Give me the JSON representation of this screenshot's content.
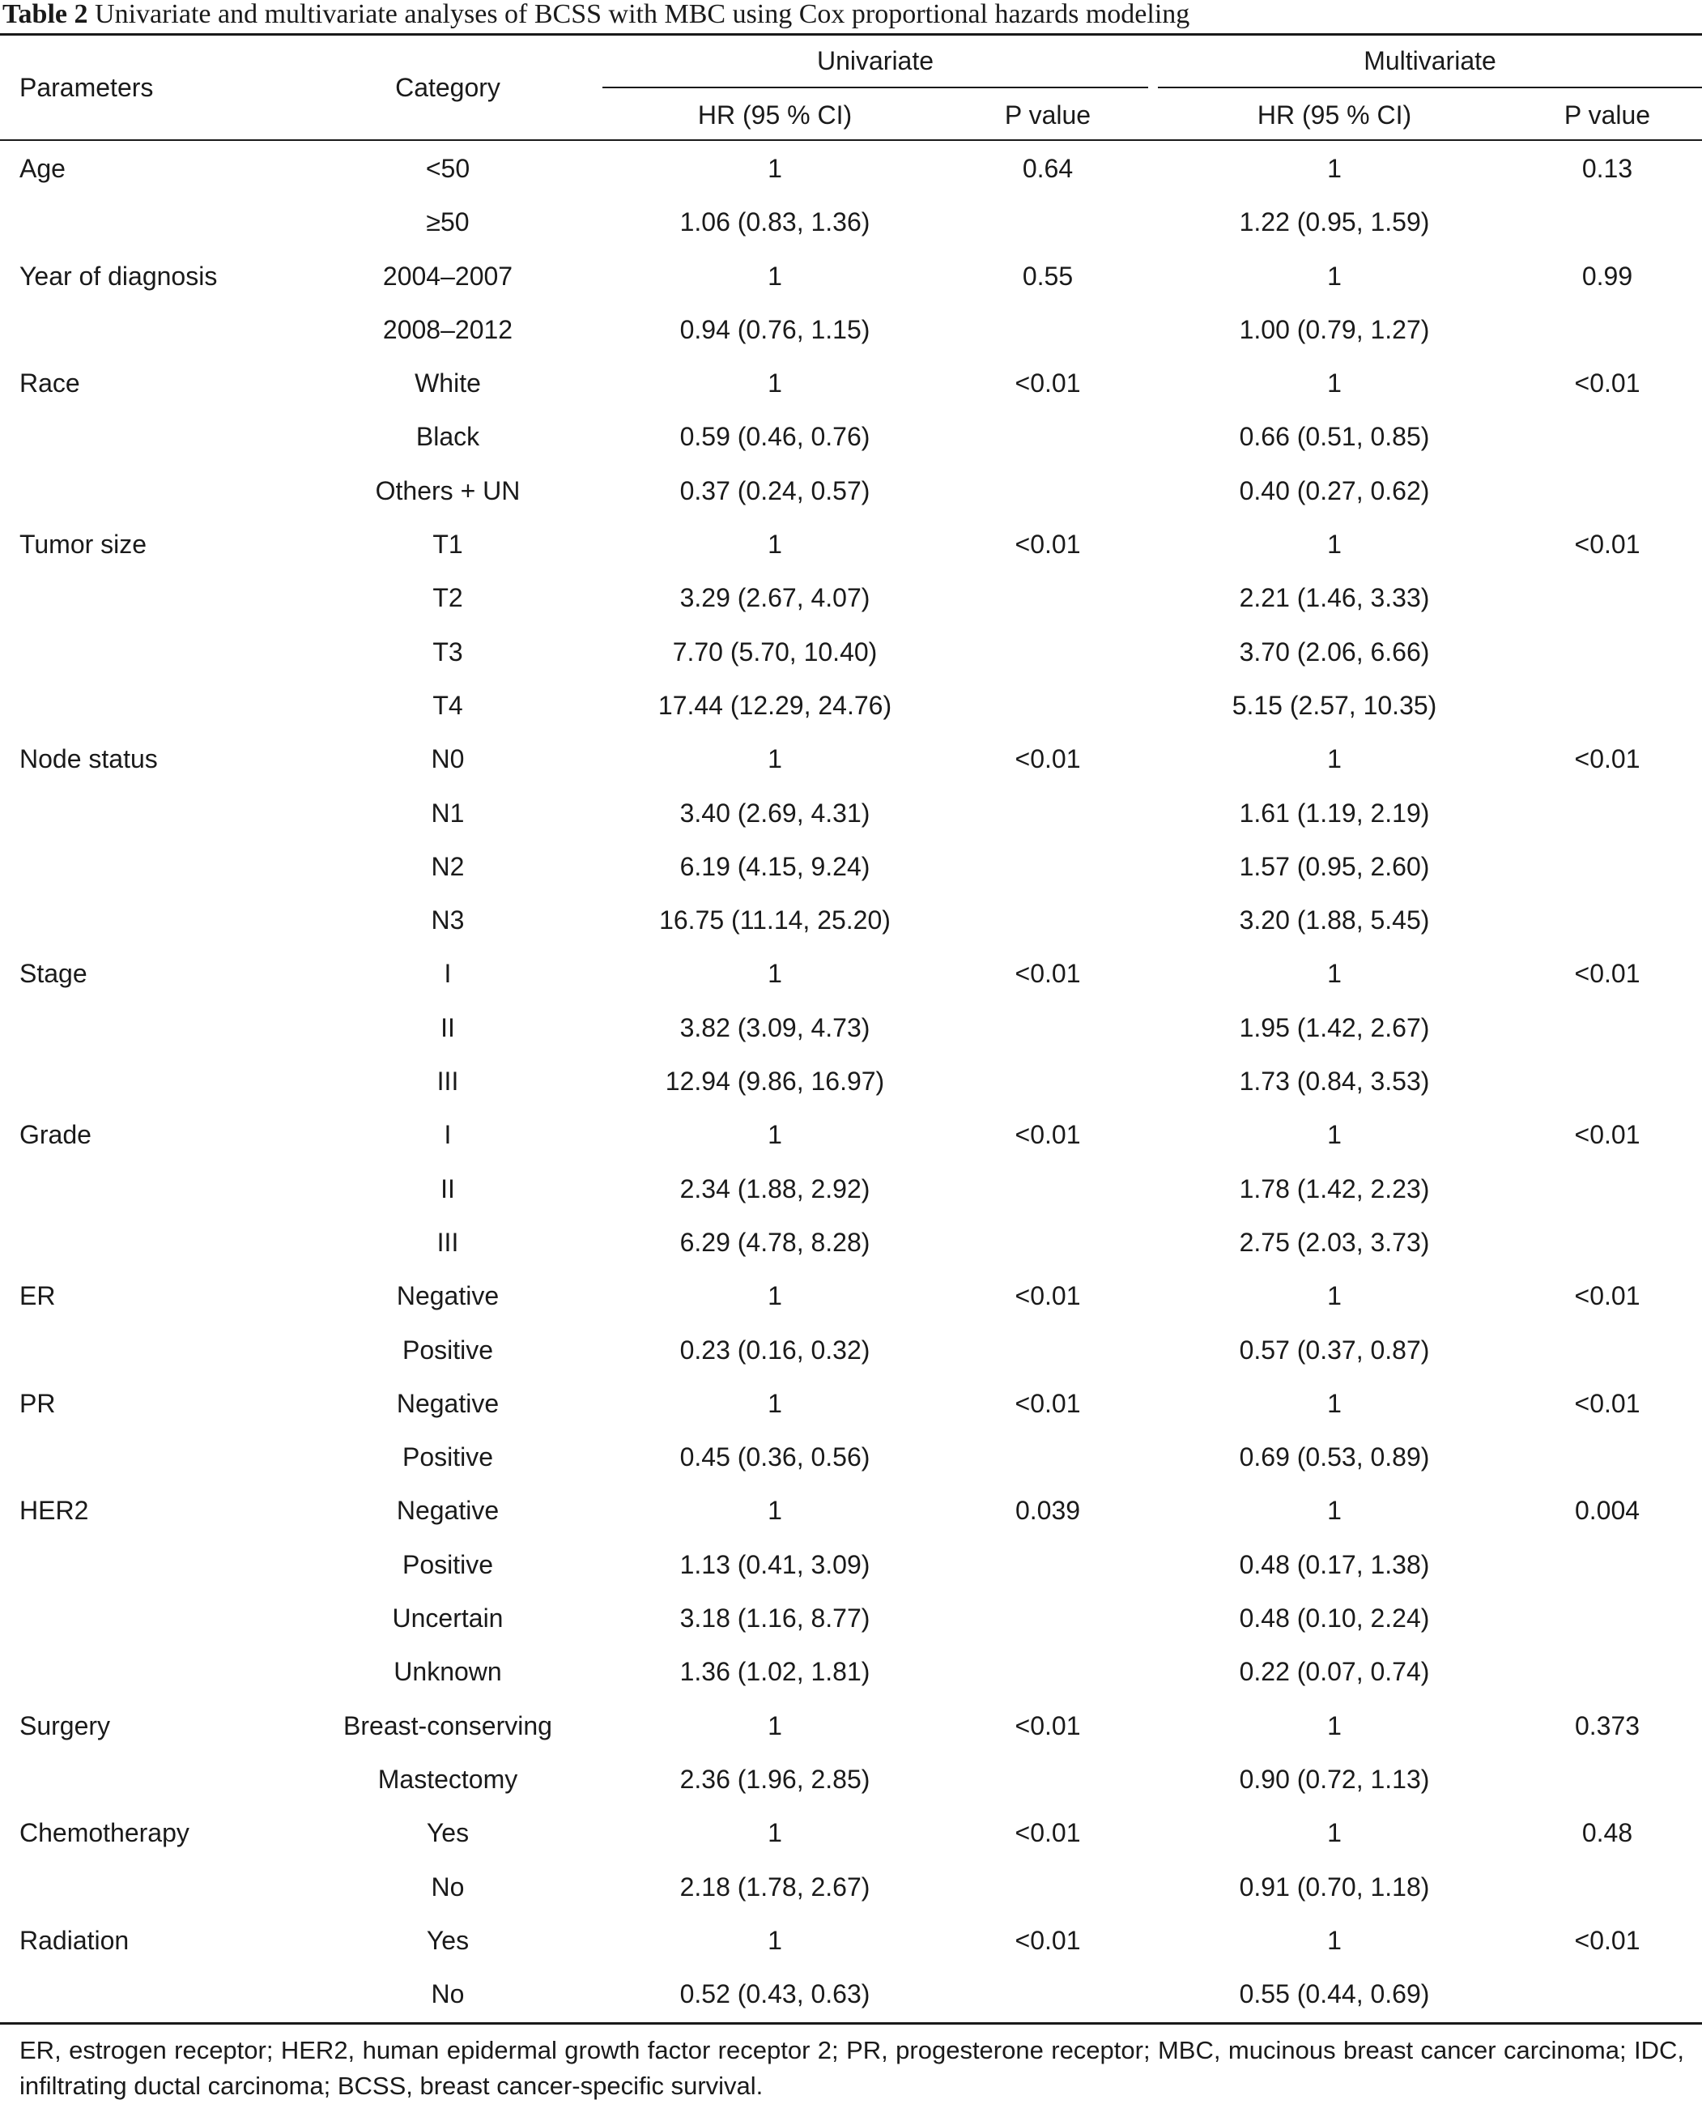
{
  "caption": {
    "label": "Table 2",
    "text": " Univariate and multivariate analyses of BCSS with MBC using Cox proportional hazards modeling"
  },
  "headers": {
    "parameters": "Parameters",
    "category": "Category",
    "univariate": "Univariate",
    "multivariate": "Multivariate",
    "uni_hr": "HR (95 % CI)",
    "uni_p": "P value",
    "multi_hr": "HR (95 % CI)",
    "multi_p": "P value"
  },
  "rows": [
    {
      "param": "Age",
      "category": "<50",
      "uni_hr": "1",
      "uni_p": "0.64",
      "multi_hr": "1",
      "multi_p": "0.13"
    },
    {
      "param": "",
      "category": "≥50",
      "uni_hr": "1.06 (0.83, 1.36)",
      "uni_p": "",
      "multi_hr": "1.22 (0.95, 1.59)",
      "multi_p": ""
    },
    {
      "param": "Year of diagnosis",
      "category": "2004–2007",
      "uni_hr": "1",
      "uni_p": "0.55",
      "multi_hr": "1",
      "multi_p": "0.99"
    },
    {
      "param": "",
      "category": "2008–2012",
      "uni_hr": "0.94 (0.76, 1.15)",
      "uni_p": "",
      "multi_hr": "1.00 (0.79, 1.27)",
      "multi_p": ""
    },
    {
      "param": "Race",
      "category": "White",
      "uni_hr": "1",
      "uni_p": "<0.01",
      "multi_hr": "1",
      "multi_p": "<0.01"
    },
    {
      "param": "",
      "category": "Black",
      "uni_hr": "0.59 (0.46, 0.76)",
      "uni_p": "",
      "multi_hr": "0.66 (0.51, 0.85)",
      "multi_p": ""
    },
    {
      "param": "",
      "category": "Others + UN",
      "uni_hr": "0.37 (0.24, 0.57)",
      "uni_p": "",
      "multi_hr": "0.40 (0.27, 0.62)",
      "multi_p": ""
    },
    {
      "param": "Tumor size",
      "category": "T1",
      "uni_hr": "1",
      "uni_p": "<0.01",
      "multi_hr": "1",
      "multi_p": "<0.01"
    },
    {
      "param": "",
      "category": "T2",
      "uni_hr": "3.29 (2.67, 4.07)",
      "uni_p": "",
      "multi_hr": "2.21 (1.46, 3.33)",
      "multi_p": ""
    },
    {
      "param": "",
      "category": "T3",
      "uni_hr": "7.70 (5.70, 10.40)",
      "uni_p": "",
      "multi_hr": "3.70 (2.06, 6.66)",
      "multi_p": ""
    },
    {
      "param": "",
      "category": "T4",
      "uni_hr": "17.44 (12.29, 24.76)",
      "uni_p": "",
      "multi_hr": "5.15 (2.57, 10.35)",
      "multi_p": ""
    },
    {
      "param": "Node status",
      "category": "N0",
      "uni_hr": "1",
      "uni_p": "<0.01",
      "multi_hr": "1",
      "multi_p": "<0.01"
    },
    {
      "param": "",
      "category": "N1",
      "uni_hr": "3.40 (2.69, 4.31)",
      "uni_p": "",
      "multi_hr": "1.61 (1.19, 2.19)",
      "multi_p": ""
    },
    {
      "param": "",
      "category": "N2",
      "uni_hr": "6.19 (4.15, 9.24)",
      "uni_p": "",
      "multi_hr": "1.57 (0.95, 2.60)",
      "multi_p": ""
    },
    {
      "param": "",
      "category": "N3",
      "uni_hr": "16.75 (11.14, 25.20)",
      "uni_p": "",
      "multi_hr": "3.20 (1.88, 5.45)",
      "multi_p": ""
    },
    {
      "param": "Stage",
      "category": "I",
      "uni_hr": "1",
      "uni_p": "<0.01",
      "multi_hr": "1",
      "multi_p": "<0.01"
    },
    {
      "param": "",
      "category": "II",
      "uni_hr": "3.82 (3.09, 4.73)",
      "uni_p": "",
      "multi_hr": "1.95 (1.42, 2.67)",
      "multi_p": ""
    },
    {
      "param": "",
      "category": "III",
      "uni_hr": "12.94 (9.86, 16.97)",
      "uni_p": "",
      "multi_hr": "1.73 (0.84, 3.53)",
      "multi_p": ""
    },
    {
      "param": "Grade",
      "category": "I",
      "uni_hr": "1",
      "uni_p": "<0.01",
      "multi_hr": "1",
      "multi_p": "<0.01"
    },
    {
      "param": "",
      "category": "II",
      "uni_hr": "2.34 (1.88, 2.92)",
      "uni_p": "",
      "multi_hr": "1.78 (1.42, 2.23)",
      "multi_p": ""
    },
    {
      "param": "",
      "category": "III",
      "uni_hr": "6.29 (4.78, 8.28)",
      "uni_p": "",
      "multi_hr": "2.75 (2.03, 3.73)",
      "multi_p": ""
    },
    {
      "param": "ER",
      "category": "Negative",
      "uni_hr": "1",
      "uni_p": "<0.01",
      "multi_hr": "1",
      "multi_p": "<0.01"
    },
    {
      "param": "",
      "category": "Positive",
      "uni_hr": "0.23 (0.16, 0.32)",
      "uni_p": "",
      "multi_hr": "0.57 (0.37, 0.87)",
      "multi_p": ""
    },
    {
      "param": "PR",
      "category": "Negative",
      "uni_hr": "1",
      "uni_p": "<0.01",
      "multi_hr": "1",
      "multi_p": "<0.01"
    },
    {
      "param": "",
      "category": "Positive",
      "uni_hr": "0.45 (0.36, 0.56)",
      "uni_p": "",
      "multi_hr": "0.69 (0.53, 0.89)",
      "multi_p": ""
    },
    {
      "param": "HER2",
      "category": "Negative",
      "uni_hr": "1",
      "uni_p": "0.039",
      "multi_hr": "1",
      "multi_p": "0.004"
    },
    {
      "param": "",
      "category": "Positive",
      "uni_hr": "1.13 (0.41, 3.09)",
      "uni_p": "",
      "multi_hr": "0.48 (0.17, 1.38)",
      "multi_p": ""
    },
    {
      "param": "",
      "category": "Uncertain",
      "uni_hr": "3.18 (1.16, 8.77)",
      "uni_p": "",
      "multi_hr": "0.48 (0.10, 2.24)",
      "multi_p": ""
    },
    {
      "param": "",
      "category": "Unknown",
      "uni_hr": "1.36 (1.02, 1.81)",
      "uni_p": "",
      "multi_hr": "0.22 (0.07, 0.74)",
      "multi_p": ""
    },
    {
      "param": "Surgery",
      "category": "Breast-conserving",
      "uni_hr": "1",
      "uni_p": "<0.01",
      "multi_hr": "1",
      "multi_p": "0.373"
    },
    {
      "param": "",
      "category": "Mastectomy",
      "uni_hr": "2.36 (1.96, 2.85)",
      "uni_p": "",
      "multi_hr": "0.90 (0.72, 1.13)",
      "multi_p": ""
    },
    {
      "param": "Chemotherapy",
      "category": "Yes",
      "uni_hr": "1",
      "uni_p": "<0.01",
      "multi_hr": "1",
      "multi_p": "0.48"
    },
    {
      "param": "",
      "category": "No",
      "uni_hr": "2.18 (1.78, 2.67)",
      "uni_p": "",
      "multi_hr": "0.91 (0.70, 1.18)",
      "multi_p": ""
    },
    {
      "param": "Radiation",
      "category": "Yes",
      "uni_hr": "1",
      "uni_p": "<0.01",
      "multi_hr": "1",
      "multi_p": "<0.01"
    },
    {
      "param": "",
      "category": "No",
      "uni_hr": "0.52 (0.43, 0.63)",
      "uni_p": "",
      "multi_hr": "0.55 (0.44, 0.69)",
      "multi_p": ""
    }
  ],
  "footnote": "ER, estrogen receptor; HER2, human epidermal growth factor receptor 2; PR, progesterone receptor; MBC, mucinous breast cancer carcinoma; IDC, infiltrating ductal carcinoma; BCSS, breast cancer-specific survival."
}
